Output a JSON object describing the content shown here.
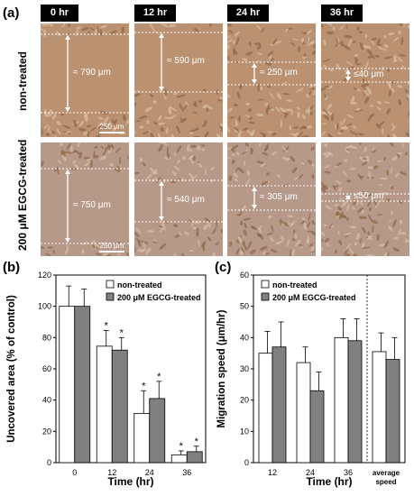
{
  "panel_a": {
    "label": "(a)",
    "time_headers": [
      "0 hr",
      "12 hr",
      "24 hr",
      "36 hr"
    ],
    "row_labels": [
      "non-treated",
      "200 μM EGCG-treated"
    ],
    "gap_labels": [
      [
        "≈ 790 μm",
        "≈ 590 μm",
        "≈ 250 μm",
        "≤40 μm"
      ],
      [
        "≈ 750 μm",
        "≈ 540 μm",
        "≈ 305 μm",
        "≤50 μm"
      ]
    ],
    "scale_bar": "250 μm"
  },
  "chart_data": [
    {
      "panel": "(b)",
      "type": "bar",
      "categories": [
        "0",
        "12",
        "24",
        "36"
      ],
      "series": [
        {
          "name": "non-treated",
          "color": "#ffffff",
          "values": [
            100,
            74.5,
            31.5,
            5
          ],
          "errors": [
            13,
            10,
            14.5,
            2.5
          ]
        },
        {
          "name": "200 μM EGCG-treated",
          "color": "#808080",
          "values": [
            100,
            72,
            41,
            7
          ],
          "errors": [
            11,
            8,
            11,
            3.5
          ]
        }
      ],
      "significance": [
        [
          "",
          "*",
          "*",
          "*"
        ],
        [
          "",
          "*",
          "*",
          "*"
        ]
      ],
      "xlabel": "Time (hr)",
      "ylabel": "Uncovered area (% of control)",
      "ylim": [
        0,
        120
      ],
      "yticks": [
        0,
        20,
        40,
        60,
        80,
        100,
        120
      ]
    },
    {
      "panel": "(c)",
      "type": "bar",
      "categories": [
        "12",
        "24",
        "36",
        "average\nspeed"
      ],
      "series": [
        {
          "name": "non-treated",
          "color": "#ffffff",
          "values": [
            35,
            32,
            40,
            35.5
          ],
          "errors": [
            7,
            5,
            6,
            6
          ]
        },
        {
          "name": "200 μM EGCG-treated",
          "color": "#808080",
          "values": [
            37,
            23,
            39,
            33
          ],
          "errors": [
            8,
            6,
            7,
            7
          ]
        }
      ],
      "xlabel": "Time (hr)",
      "ylabel": "Migration speed (μm/hr)",
      "ylim": [
        0,
        60
      ],
      "yticks": [
        0,
        10,
        20,
        30,
        40,
        50,
        60
      ],
      "separator_before_category": 3
    }
  ]
}
